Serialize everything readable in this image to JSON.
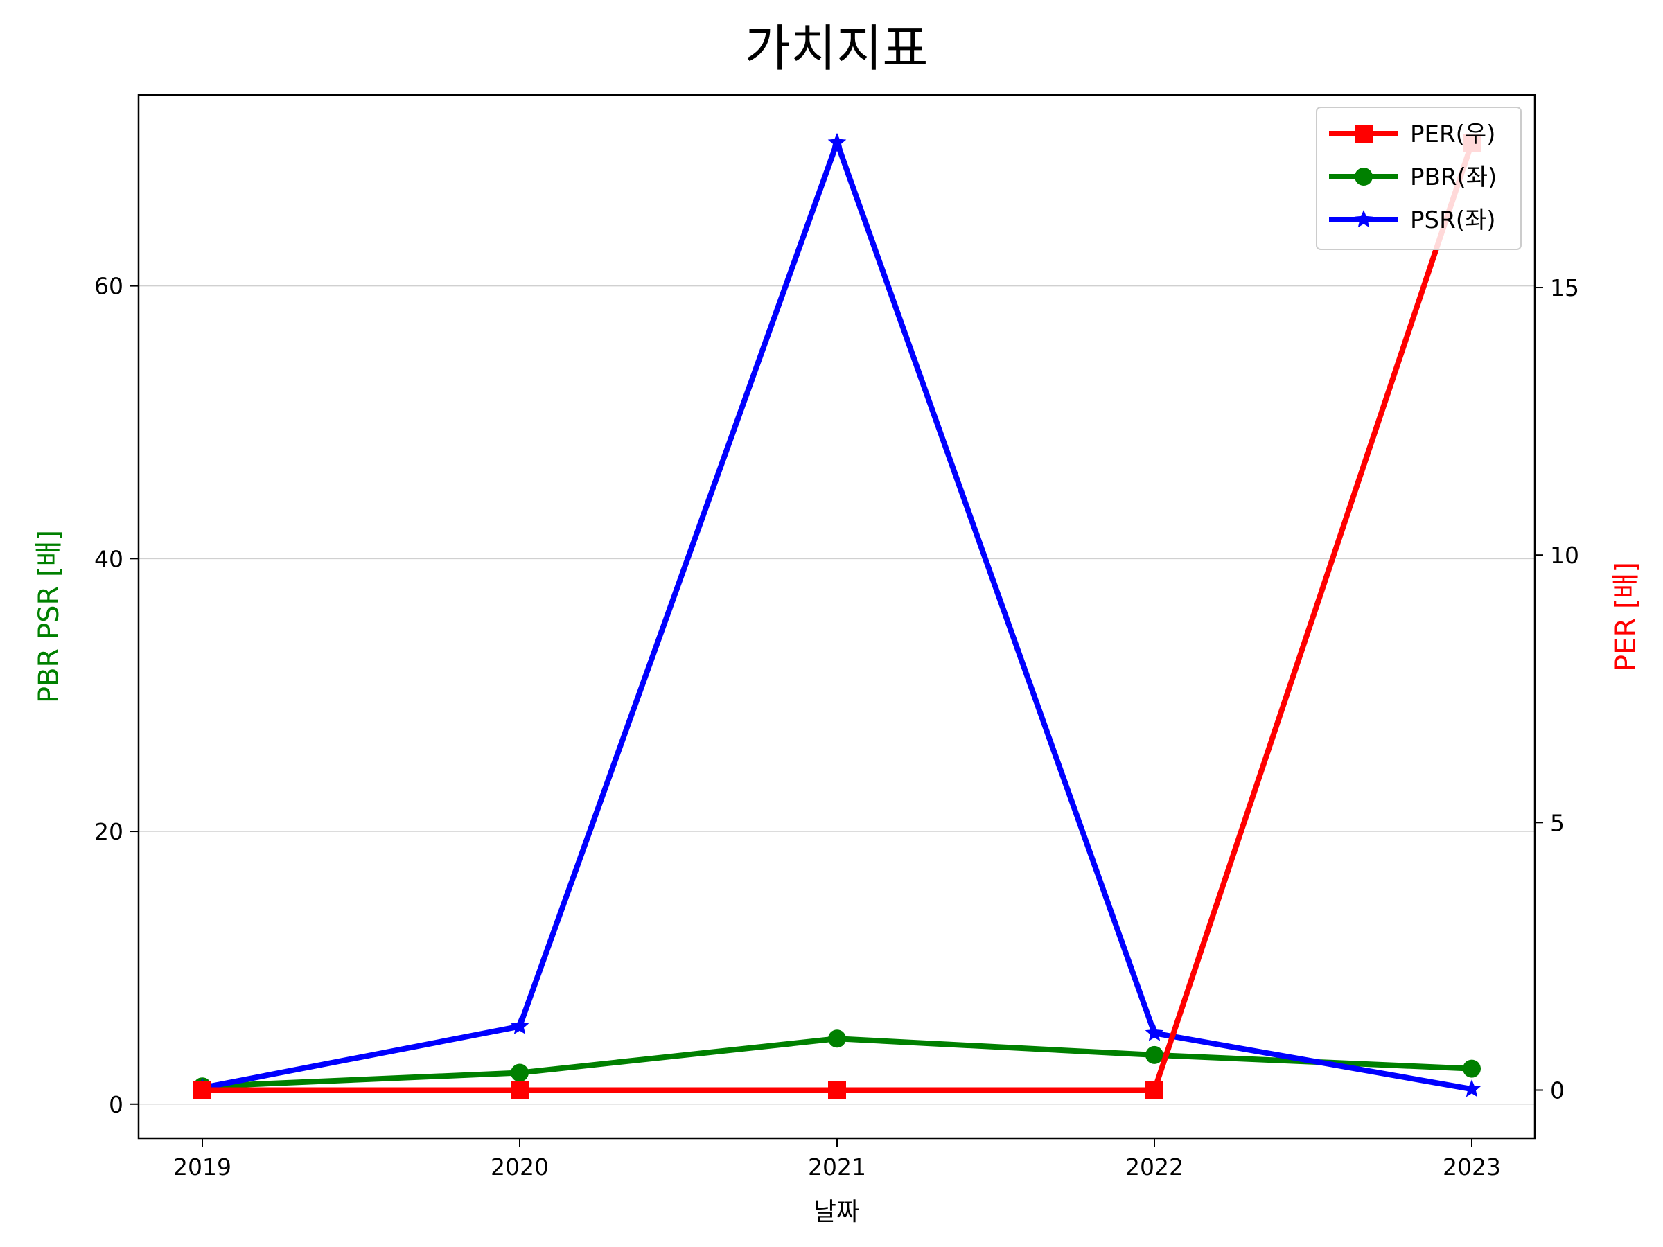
{
  "chart_data": {
    "type": "line",
    "title": "가치지표",
    "xlabel": "날짜",
    "ylabel_left": "PBR PSR [배]",
    "ylabel_right": "PER [배]",
    "categories": [
      "2019",
      "2020",
      "2021",
      "2022",
      "2023"
    ],
    "ylim_left": [
      -2.5,
      74
    ],
    "ylim_right": [
      -0.9,
      18.6
    ],
    "yticks_left": [
      0,
      20,
      40,
      60
    ],
    "yticks_right": [
      0,
      5,
      10,
      15
    ],
    "grid": "horizontal",
    "legend_position": "top-right",
    "series": [
      {
        "name": "PER(우)",
        "axis": "right",
        "color": "#ff0000",
        "marker": "square",
        "values": [
          0,
          0,
          0,
          0,
          17.7
        ]
      },
      {
        "name": "PBR(좌)",
        "axis": "left",
        "color": "#008000",
        "marker": "circle",
        "values": [
          1.3,
          2.3,
          4.8,
          3.6,
          2.6
        ]
      },
      {
        "name": "PSR(좌)",
        "axis": "left",
        "color": "#0000ff",
        "marker": "star",
        "values": [
          1.2,
          5.7,
          70.5,
          5.2,
          1.1
        ]
      }
    ],
    "colors": {
      "ylabel_left": "#008000",
      "ylabel_right": "#ff0000"
    }
  }
}
